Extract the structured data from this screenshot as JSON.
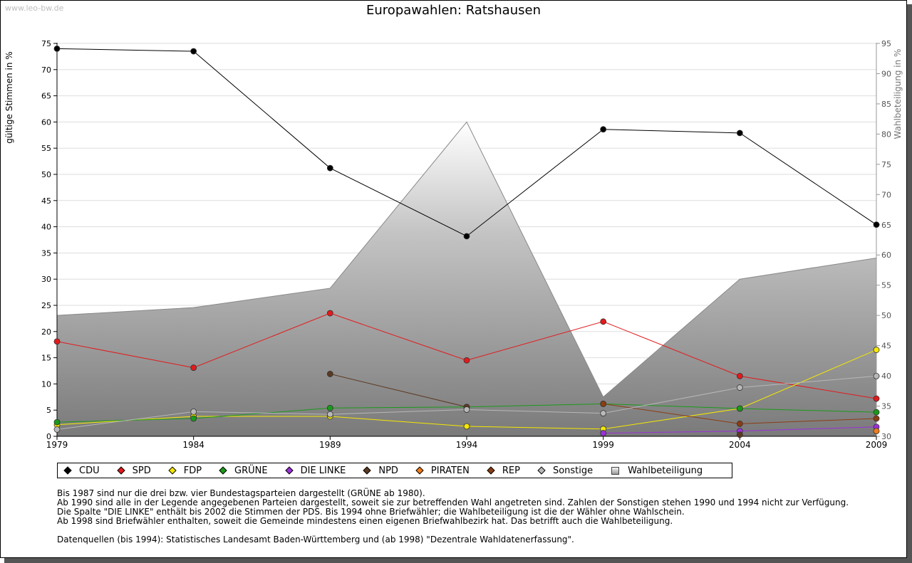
{
  "watermark": "www.leo-bw.de",
  "chart_data": {
    "type": "line",
    "title": "Europawahlen: Ratshausen",
    "ylabel": "gültige Stimmen in %",
    "y2label": "Wahlbeteiligung in %",
    "ylim": [
      0,
      75
    ],
    "y2lim": [
      30,
      95
    ],
    "yticks": [
      0,
      5,
      10,
      15,
      20,
      25,
      30,
      35,
      40,
      45,
      50,
      55,
      60,
      65,
      70,
      75
    ],
    "y2ticks": [
      30,
      35,
      40,
      45,
      50,
      55,
      60,
      65,
      70,
      75,
      80,
      85,
      90,
      95
    ],
    "x": [
      "1979",
      "1984",
      "1989",
      "1994",
      "1999",
      "2004",
      "2009"
    ],
    "grid": true,
    "legend_placement": "bottom",
    "series": [
      {
        "name": "CDU",
        "color": "#000000",
        "values": [
          74.0,
          73.5,
          51.2,
          38.2,
          58.6,
          57.9,
          40.4
        ]
      },
      {
        "name": "SPD",
        "color": "#e31a1c",
        "values": [
          18.1,
          13.1,
          23.5,
          14.5,
          21.9,
          11.5,
          7.2
        ]
      },
      {
        "name": "FDP",
        "color": "#f4e800",
        "values": [
          2.2,
          3.8,
          3.8,
          1.9,
          1.4,
          5.3,
          16.5
        ]
      },
      {
        "name": "GRÜNE",
        "color": "#1a9a1a",
        "values": [
          2.7,
          3.4,
          5.4,
          5.6,
          6.2,
          5.3,
          4.6
        ]
      },
      {
        "name": "DIE LINKE",
        "color": "#9b30d9",
        "values": [
          null,
          null,
          null,
          null,
          0.6,
          1.0,
          1.8
        ]
      },
      {
        "name": "NPD",
        "color": "#5c3a21",
        "values": [
          null,
          null,
          11.9,
          5.6,
          null,
          0.3,
          null
        ]
      },
      {
        "name": "PIRATEN",
        "color": "#f07c1a",
        "values": [
          null,
          null,
          null,
          null,
          null,
          null,
          1.0
        ]
      },
      {
        "name": "REP",
        "color": "#8b3d12",
        "values": [
          null,
          null,
          null,
          null,
          6.2,
          2.4,
          3.4
        ]
      },
      {
        "name": "Sonstige",
        "color": "#b8b8b8",
        "values": [
          1.3,
          4.7,
          4.2,
          5.1,
          4.4,
          9.3,
          11.5
        ]
      }
    ],
    "turnout": {
      "name": "Wahlbeteiligung",
      "axis": "right",
      "values": [
        50.0,
        51.3,
        54.5,
        82.0,
        36.5,
        56.0,
        59.5
      ]
    }
  },
  "notes": [
    "Bis 1987 sind nur die drei bzw. vier Bundestagsparteien dargestellt (GRÜNE ab 1980).",
    "Ab 1990 sind alle in der Legende angegebenen Parteien dargestellt, soweit sie zur betreffenden Wahl angetreten sind. Zahlen der Sonstigen stehen 1990 und 1994 nicht zur Verfügung.",
    "Die Spalte \"DIE LINKE\" enthält bis 2002 die Stimmen der PDS. Bis 1994 ohne Briefwähler; die Wahlbeteiligung ist die der Wähler ohne Wahlschein.",
    "Ab 1998 sind Briefwähler enthalten, soweit die Gemeinde mindestens einen eigenen Briefwahlbezirk hat. Das betrifft auch die Wahlbeteiligung."
  ],
  "sources": "Datenquellen (bis 1994): Statistisches Landesamt Baden-Württemberg und (ab 1998) \"Dezentrale Wahldatenerfassung\".",
  "legend": [
    {
      "label": "CDU",
      "color": "#000000",
      "shape": "diamond"
    },
    {
      "label": "SPD",
      "color": "#e31a1c",
      "shape": "diamond"
    },
    {
      "label": "FDP",
      "color": "#f4e800",
      "shape": "diamond"
    },
    {
      "label": "GRÜNE",
      "color": "#1a9a1a",
      "shape": "diamond"
    },
    {
      "label": "DIE LINKE",
      "color": "#9b30d9",
      "shape": "diamond"
    },
    {
      "label": "NPD",
      "color": "#5c3a21",
      "shape": "diamond"
    },
    {
      "label": "PIRATEN",
      "color": "#f07c1a",
      "shape": "diamond"
    },
    {
      "label": "REP",
      "color": "#8b3d12",
      "shape": "diamond"
    },
    {
      "label": "Sonstige",
      "color": "#b8b8b8",
      "shape": "diamond"
    },
    {
      "label": "Wahlbeteiligung",
      "color": "#cccccc",
      "shape": "square"
    }
  ]
}
